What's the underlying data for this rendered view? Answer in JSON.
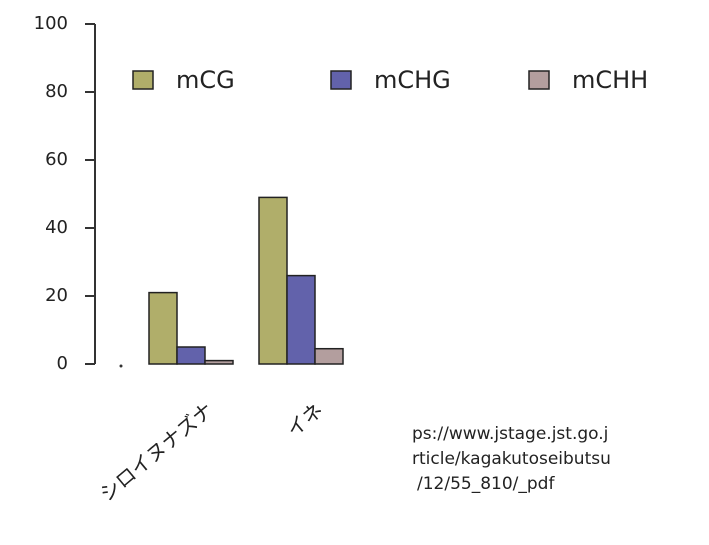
{
  "chart_data": {
    "type": "bar",
    "categories": [
      "シロイヌナズナ",
      "イネ"
    ],
    "series": [
      {
        "name": "mCG",
        "color": "#b0ae6a",
        "values": [
          21,
          49
        ]
      },
      {
        "name": "mCHG",
        "color": "#6262ab",
        "values": [
          5,
          26
        ]
      },
      {
        "name": "mCHH",
        "color": "#b39e9e",
        "values": [
          1,
          4.5
        ]
      }
    ],
    "ylim": [
      0,
      100
    ],
    "yticks": [
      0,
      20,
      40,
      60,
      80,
      100
    ],
    "grid": false,
    "legend": "top",
    "annotations": [
      "ps://www.jstage.jst.go.j",
      "rticle/kagakutoseibutsu",
      "/12/55_810/_pdf"
    ]
  }
}
